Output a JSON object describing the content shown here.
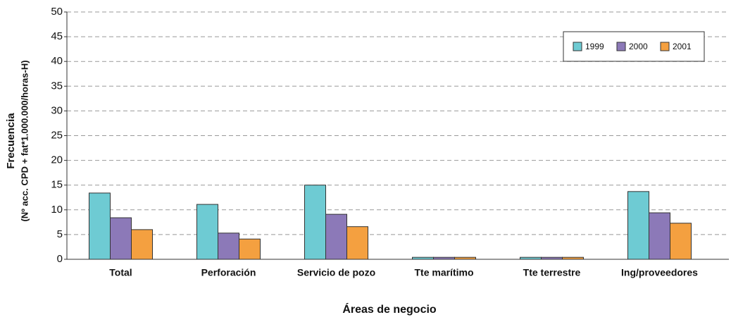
{
  "chart_data": {
    "type": "bar",
    "x_label": "Áreas de negocio",
    "y_label": [
      "Frecuencia",
      "(Nº acc. CPD + fat*1.000.000/horas-H)"
    ],
    "categories": [
      "Total",
      "Perforación",
      "Servicio de pozo",
      "Tte marítimo",
      "Tte terrestre",
      "Ing/proveedores"
    ],
    "series": [
      {
        "name": "1999",
        "color": "#6ecbd3",
        "values": [
          13.4,
          11.1,
          15.0,
          0.4,
          0.4,
          13.7
        ]
      },
      {
        "name": "2000",
        "color": "#8c79b8",
        "values": [
          8.4,
          5.3,
          9.1,
          0.4,
          0.4,
          9.4
        ]
      },
      {
        "name": "2001",
        "color": "#f4a040",
        "values": [
          6.0,
          4.1,
          6.6,
          0.4,
          0.4,
          7.3
        ]
      }
    ],
    "ylim": [
      0,
      50
    ],
    "yticks": [
      0,
      5,
      10,
      15,
      20,
      25,
      30,
      35,
      40,
      45,
      50
    ],
    "grid": true,
    "legend": "upper right"
  }
}
